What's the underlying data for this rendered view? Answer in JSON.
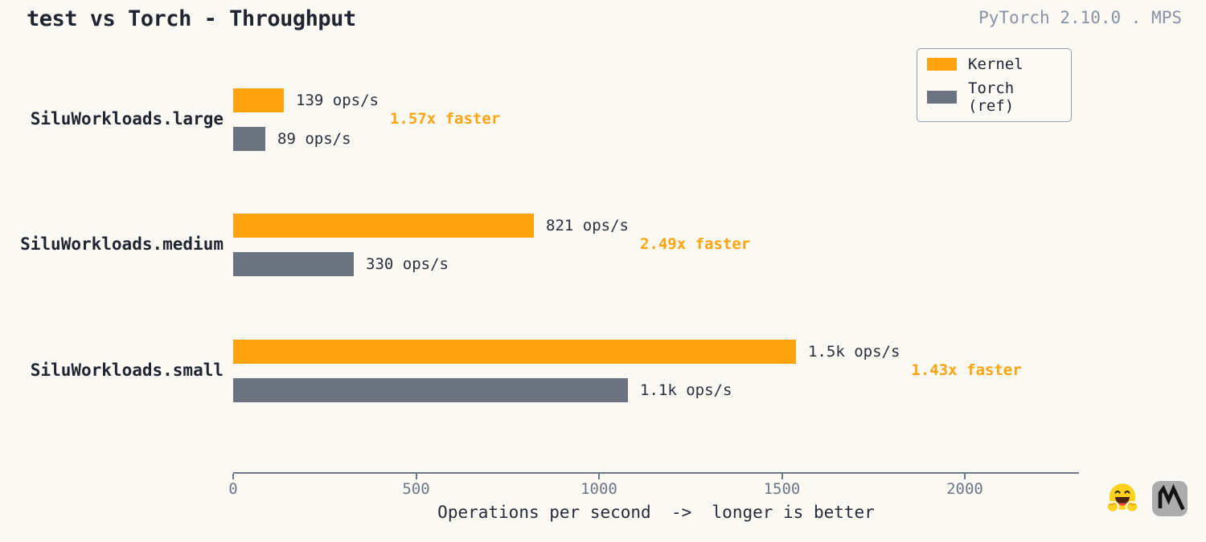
{
  "header": {
    "title": "test vs Torch - Throughput",
    "subtitle": "PyTorch 2.10.0 . MPS"
  },
  "colors": {
    "kernel": "#FFA30F",
    "torch": "#6B7380",
    "speedup_text": "#FFA30F",
    "background": "#FAF9F3"
  },
  "legend": {
    "entries": [
      {
        "name": "Kernel",
        "color": "#FFA30F"
      },
      {
        "name": "Torch (ref)",
        "color": "#6B7380"
      }
    ]
  },
  "footer": {
    "icons": [
      "hugging-face-emoji",
      "kernels-logo"
    ]
  },
  "chart_data": {
    "type": "bar",
    "orientation": "horizontal",
    "title": "test vs Torch - Throughput",
    "subtitle": "PyTorch 2.10.0 . MPS",
    "xlabel": "Operations per second  ->  longer is better",
    "xlim": [
      0,
      2312
    ],
    "x_ticks": [
      0,
      500,
      1000,
      1500,
      2000
    ],
    "grid": false,
    "legend_position": "upper right",
    "categories": [
      "SiluWorkloads.large",
      "SiluWorkloads.medium",
      "SiluWorkloads.small"
    ],
    "series": [
      {
        "name": "Kernel",
        "values": [
          139,
          821,
          1538
        ],
        "labels": [
          "139 ops/s",
          "821 ops/s",
          "1.5k ops/s"
        ]
      },
      {
        "name": "Torch (ref)",
        "values": [
          89,
          330,
          1079
        ],
        "labels": [
          "89 ops/s",
          "330 ops/s",
          "1.1k ops/s"
        ]
      }
    ],
    "speedups": [
      "1.57x faster",
      "2.49x faster",
      "1.43x faster"
    ]
  }
}
